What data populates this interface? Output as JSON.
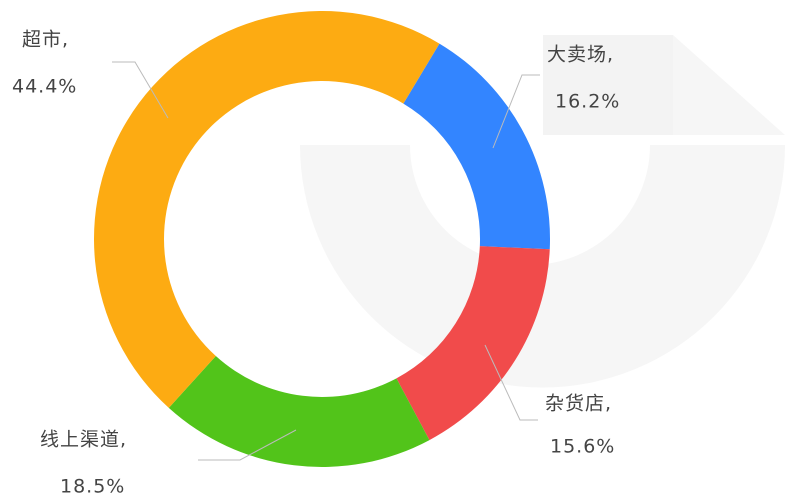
{
  "chart_data": {
    "type": "donut",
    "categories": [
      "大卖场,",
      "杂货店,",
      "线上渠道,",
      "超市,"
    ],
    "values": [
      16.2,
      15.6,
      18.5,
      44.4
    ],
    "value_labels": [
      "16.2%",
      "15.6%",
      "18.5%",
      "44.4%"
    ],
    "colors": [
      "#3385ff",
      "#f03c3c",
      "#52c41a",
      "#fdab12"
    ]
  }
}
